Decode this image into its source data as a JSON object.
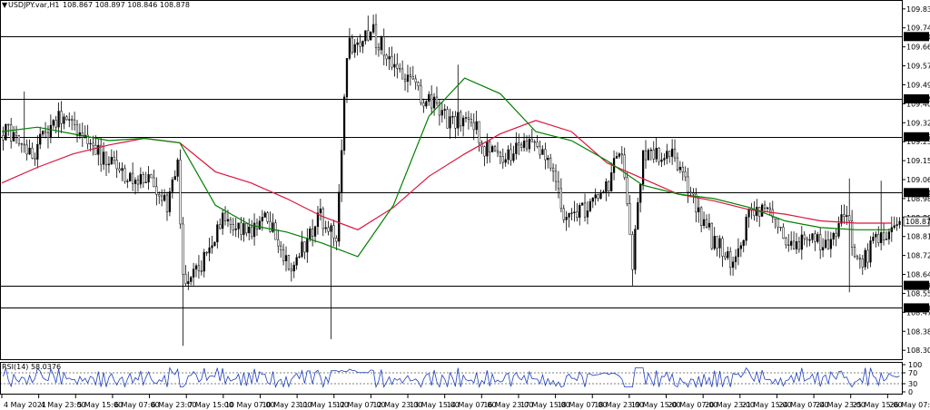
{
  "header": {
    "menu_glyph": "▼",
    "symbol": "USDJPY.var,H1",
    "ohlc": "108.867 108.897 108.846 108.878"
  },
  "chart_data": {
    "type": "candlestick",
    "instrument": "USDJPY.var",
    "timeframe": "H1",
    "ohlc_last": {
      "open": 108.867,
      "high": 108.897,
      "low": 108.846,
      "close": 108.878
    },
    "ylim": [
      108.26,
      109.87
    ],
    "y_ticks": [
      109.83,
      109.745,
      109.66,
      109.575,
      109.49,
      109.405,
      109.32,
      109.235,
      109.15,
      109.065,
      108.98,
      108.895,
      108.81,
      108.725,
      108.64,
      108.555,
      108.47,
      108.385,
      108.3
    ],
    "hidden_ticks": [
      108.895
    ],
    "horizontal_levels": [
      109.706,
      109.427,
      109.257,
      109.007,
      108.591,
      108.49
    ],
    "current_price": 108.878,
    "x_labels": [
      "4 May 2021",
      "4 May 23:00",
      "5 May 15:00",
      "6 May 07:00",
      "6 May 23:00",
      "7 May 15:00",
      "10 May 07:00",
      "10 May 23:00",
      "11 May 15:00",
      "12 May 07:00",
      "12 May 23:00",
      "13 May 15:00",
      "14 May 07:00",
      "16 May 23:00",
      "17 May 15:00",
      "18 May 07:00",
      "18 May 23:00",
      "19 May 15:00",
      "20 May 07:00",
      "20 May 23:00",
      "21 May 15:00",
      "24 May 07:00",
      "24 May 23:00",
      "25 May 15:00",
      "26 May 07:00"
    ],
    "close_anchors": [
      [
        0,
        109.28
      ],
      [
        12,
        109.2
      ],
      [
        22,
        109.35
      ],
      [
        30,
        109.25
      ],
      [
        38,
        109.15
      ],
      [
        48,
        109.08
      ],
      [
        56,
        109.05
      ],
      [
        62,
        108.95
      ],
      [
        66,
        109.12
      ],
      [
        68,
        108.62
      ],
      [
        74,
        108.65
      ],
      [
        82,
        108.88
      ],
      [
        90,
        108.82
      ],
      [
        100,
        108.88
      ],
      [
        108,
        108.68
      ],
      [
        114,
        108.78
      ],
      [
        120,
        108.9
      ],
      [
        126,
        108.78
      ],
      [
        130,
        109.65
      ],
      [
        140,
        109.72
      ],
      [
        148,
        109.58
      ],
      [
        156,
        109.46
      ],
      [
        164,
        109.38
      ],
      [
        170,
        109.32
      ],
      [
        176,
        109.38
      ],
      [
        182,
        109.2
      ],
      [
        190,
        109.15
      ],
      [
        198,
        109.22
      ],
      [
        206,
        109.15
      ],
      [
        212,
        108.9
      ],
      [
        220,
        108.92
      ],
      [
        228,
        109.02
      ],
      [
        234,
        109.22
      ],
      [
        238,
        108.7
      ],
      [
        242,
        109.2
      ],
      [
        248,
        109.18
      ],
      [
        256,
        109.15
      ],
      [
        262,
        108.95
      ],
      [
        268,
        108.8
      ],
      [
        276,
        108.7
      ],
      [
        282,
        108.9
      ],
      [
        290,
        108.95
      ],
      [
        296,
        108.78
      ],
      [
        304,
        108.8
      ],
      [
        312,
        108.75
      ],
      [
        318,
        108.92
      ],
      [
        324,
        108.68
      ],
      [
        330,
        108.78
      ],
      [
        336,
        108.85
      ]
    ],
    "ma_fast": {
      "color": "#008000",
      "values": [
        109.28,
        109.3,
        109.27,
        109.24,
        109.25,
        109.23,
        108.95,
        108.86,
        108.83,
        108.78,
        108.72,
        108.95,
        109.35,
        109.52,
        109.45,
        109.28,
        109.24,
        109.15,
        109.04,
        109.0,
        108.98,
        108.94,
        108.88,
        108.85,
        108.84,
        108.84
      ]
    },
    "ma_slow": {
      "color": "#dc143c",
      "values": [
        109.05,
        109.12,
        109.18,
        109.22,
        109.25,
        109.23,
        109.1,
        109.05,
        108.98,
        108.9,
        108.84,
        108.94,
        109.08,
        109.18,
        109.27,
        109.33,
        109.28,
        109.14,
        109.07,
        109.0,
        108.97,
        108.93,
        108.91,
        108.88,
        108.87,
        108.87
      ]
    },
    "rsi": {
      "label": "RSI(14) 58.0376",
      "period": 14,
      "last": 58.0376,
      "ylim": [
        0,
        100
      ],
      "ticks": [
        100,
        70,
        30,
        0
      ]
    }
  }
}
